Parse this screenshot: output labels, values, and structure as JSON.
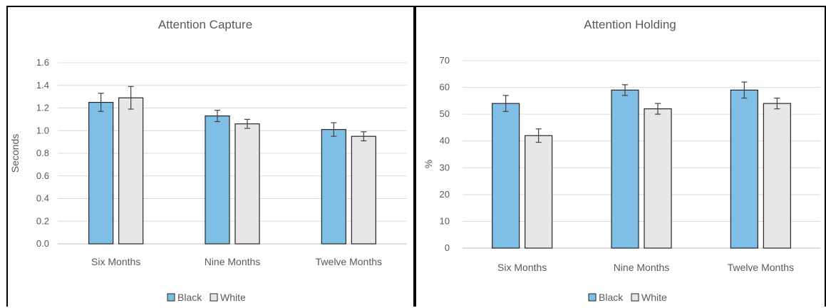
{
  "colors": {
    "black_series": "#7fbfe6",
    "white_series": "#e7e7e7",
    "bar_border": "#262626"
  },
  "chart_data": [
    {
      "type": "bar",
      "title": "Attention Capture",
      "xlabel": "",
      "ylabel": "Seconds",
      "ylim": [
        0,
        1.6
      ],
      "yticks": [
        "0.0",
        "0.2",
        "0.4",
        "0.6",
        "0.8",
        "1.0",
        "1.2",
        "1.4",
        "1.6"
      ],
      "grid": true,
      "legend": "bottom-center",
      "categories": [
        "Six Months",
        "Nine Months",
        "Twelve Months"
      ],
      "series": [
        {
          "name": "Black",
          "values": [
            1.25,
            1.13,
            1.01
          ],
          "errors": [
            0.08,
            0.05,
            0.06
          ]
        },
        {
          "name": "White",
          "values": [
            1.29,
            1.06,
            0.95
          ],
          "errors": [
            0.1,
            0.04,
            0.04
          ]
        }
      ]
    },
    {
      "type": "bar",
      "title": "Attention Holding",
      "xlabel": "",
      "ylabel": "%",
      "ylim": [
        0,
        70
      ],
      "yticks": [
        "0",
        "10",
        "20",
        "30",
        "40",
        "50",
        "60",
        "70"
      ],
      "grid": true,
      "legend": "bottom-center",
      "categories": [
        "Six Months",
        "Nine Months",
        "Twelve Months"
      ],
      "series": [
        {
          "name": "Black",
          "values": [
            54,
            59,
            59
          ],
          "errors": [
            3,
            2,
            3
          ]
        },
        {
          "name": "White",
          "values": [
            42,
            52,
            54
          ],
          "errors": [
            2.5,
            2,
            2
          ]
        }
      ]
    }
  ]
}
